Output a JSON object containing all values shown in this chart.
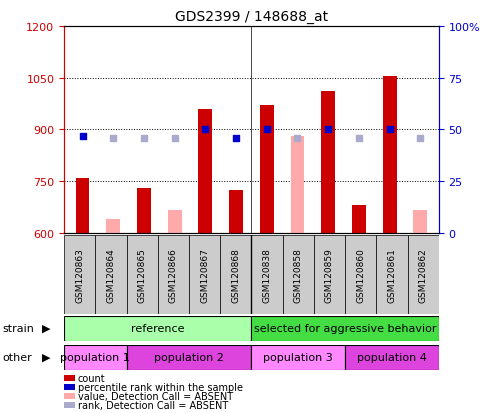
{
  "title": "GDS2399 / 148688_at",
  "samples": [
    "GSM120863",
    "GSM120864",
    "GSM120865",
    "GSM120866",
    "GSM120867",
    "GSM120868",
    "GSM120838",
    "GSM120858",
    "GSM120859",
    "GSM120860",
    "GSM120861",
    "GSM120862"
  ],
  "count_values": [
    760,
    null,
    730,
    null,
    960,
    725,
    970,
    null,
    1010,
    680,
    1055,
    null
  ],
  "absent_value_values": [
    null,
    640,
    null,
    665,
    null,
    null,
    null,
    880,
    null,
    null,
    null,
    665
  ],
  "percentile_rank_values": [
    47,
    null,
    null,
    null,
    50,
    46,
    50,
    null,
    50,
    null,
    50,
    null
  ],
  "absent_rank_values": [
    null,
    46,
    46,
    46,
    null,
    null,
    null,
    46,
    null,
    46,
    null,
    46
  ],
  "ylim_left": [
    600,
    1200
  ],
  "ylim_right": [
    0,
    100
  ],
  "yticks_left": [
    600,
    750,
    900,
    1050,
    1200
  ],
  "yticks_right": [
    0,
    25,
    50,
    75,
    100
  ],
  "count_color": "#cc0000",
  "absent_value_color": "#ffaaaa",
  "percentile_color": "#0000cc",
  "absent_rank_color": "#aaaacc",
  "strain_reference_color": "#aaffaa",
  "strain_aggressive_color": "#44dd44",
  "population1_color": "#ff88ff",
  "population2_color": "#dd44dd",
  "population3_color": "#ff88ff",
  "population4_color": "#dd44dd",
  "strain_reference_label": "reference",
  "strain_aggressive_label": "selected for aggressive behavior",
  "pop_labels": [
    "population 1",
    "population 2",
    "population 3",
    "population 4"
  ],
  "tick_bg_color": "#cccccc"
}
